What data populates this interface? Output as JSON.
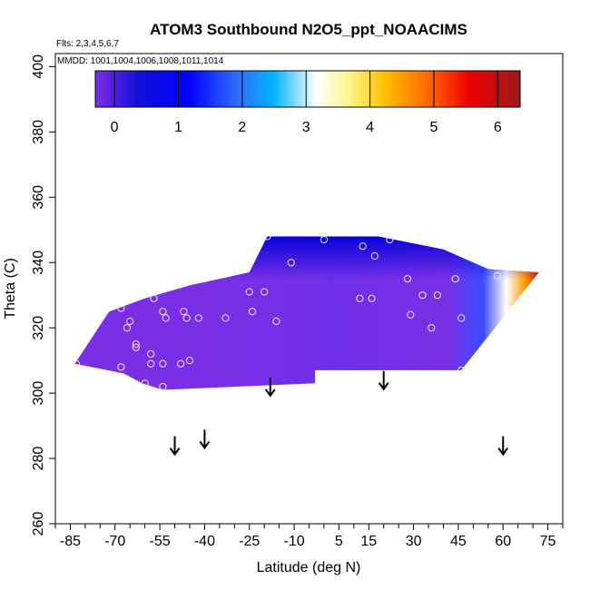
{
  "chart_data": {
    "type": "heatmap",
    "title": "ATOM3 Southbound N2O5_ppt_NOAACIMS",
    "flights_label": "Flts: 2,3,4,5,6,7",
    "mmdd_label": "MMDD: 1001,1004,1006,1008,1011,1014",
    "xlabel": "Latitude (deg N)",
    "ylabel": "Theta (C)",
    "xlim": [
      -90,
      80
    ],
    "ylim": [
      260,
      404
    ],
    "x_ticks": [
      -85,
      -70,
      -55,
      -40,
      -25,
      -10,
      5,
      15,
      30,
      45,
      60,
      75
    ],
    "y_ticks": [
      260,
      280,
      300,
      320,
      340,
      360,
      380,
      400
    ],
    "colorbar": {
      "range": [
        -0.3,
        6.35
      ],
      "ticks": [
        0,
        1,
        2,
        3,
        4,
        5,
        6
      ],
      "colors": [
        "#7d2ee8",
        "#0000ff",
        "#2262ff",
        "#00b3ff",
        "#ffffff",
        "#ffd700",
        "#ff8c00",
        "#ee0000",
        "#9b1b1b"
      ]
    },
    "region_outline": [
      [
        -83.5,
        309
      ],
      [
        -72,
        325
      ],
      [
        -60,
        329
      ],
      [
        -45,
        333
      ],
      [
        -25,
        337
      ],
      [
        -19,
        348
      ],
      [
        18,
        348
      ],
      [
        40,
        344
      ],
      [
        55,
        338
      ],
      [
        72,
        337
      ],
      [
        46,
        307
      ],
      [
        -3,
        307
      ],
      [
        -3,
        303
      ],
      [
        -54,
        301
      ],
      [
        -61,
        303
      ],
      [
        -67,
        306
      ]
    ],
    "points": [
      [
        -83,
        309
      ],
      [
        -68,
        308
      ],
      [
        -58,
        309
      ],
      [
        -54,
        309
      ],
      [
        -48,
        309
      ],
      [
        -45,
        310
      ],
      [
        -60,
        303
      ],
      [
        -54,
        302
      ],
      [
        -63,
        315
      ],
      [
        -63,
        314
      ],
      [
        -58,
        312
      ],
      [
        -66,
        320
      ],
      [
        -65,
        322
      ],
      [
        -68,
        326
      ],
      [
        -57,
        329
      ],
      [
        -54,
        325
      ],
      [
        -53,
        323
      ],
      [
        -47,
        325
      ],
      [
        -46,
        323
      ],
      [
        -42,
        323
      ],
      [
        -33,
        323
      ],
      [
        -25,
        331
      ],
      [
        -24,
        325
      ],
      [
        -20,
        331
      ],
      [
        -16,
        322
      ],
      [
        -19,
        348
      ],
      [
        -11,
        340
      ],
      [
        0,
        347
      ],
      [
        13,
        345
      ],
      [
        17,
        342
      ],
      [
        22,
        347
      ],
      [
        12,
        329
      ],
      [
        16,
        329
      ],
      [
        28,
        335
      ],
      [
        29,
        324
      ],
      [
        33,
        330
      ],
      [
        36,
        320
      ],
      [
        38,
        330
      ],
      [
        44,
        335
      ],
      [
        46,
        323
      ],
      [
        58,
        336
      ],
      [
        46,
        307
      ]
    ],
    "arrows": [
      [
        -18,
        302
      ],
      [
        20,
        304
      ],
      [
        -40,
        286
      ],
      [
        -50,
        284
      ],
      [
        60,
        284
      ]
    ]
  }
}
